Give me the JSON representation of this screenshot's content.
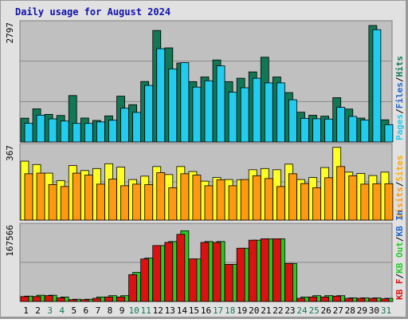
{
  "title": "Daily usage for August 2024",
  "colors": {
    "frame": "#e1e1e1",
    "plot_bg": "#c0c0c0",
    "title": "#1111aa",
    "pages": "#117755",
    "files": "#22ccee",
    "visits": "#ffff22",
    "sites": "#ff9911",
    "kb_in": "#22cc22",
    "kb_out": "#dd1111",
    "weekend": "#117755",
    "weekday": "#000000"
  },
  "chart_data": [
    {
      "type": "bar",
      "name": "panel-1",
      "ymax_label": "2797",
      "ylim": [
        0,
        2797
      ],
      "categories": [
        "1",
        "2",
        "3",
        "4",
        "5",
        "6",
        "7",
        "8",
        "9",
        "10",
        "11",
        "12",
        "13",
        "14",
        "15",
        "16",
        "17",
        "18",
        "19",
        "20",
        "21",
        "22",
        "23",
        "24",
        "25",
        "26",
        "27",
        "28",
        "29",
        "30",
        "31"
      ],
      "series": [
        {
          "name": "Pages",
          "values": [
            564,
            785,
            654,
            628,
            1100,
            567,
            510,
            618,
            1085,
            884,
            1433,
            2642,
            2230,
            1872,
            1430,
            1540,
            1943,
            1430,
            1510,
            1660,
            2008,
            1540,
            1170,
            705,
            633,
            612,
            1050,
            780,
            566,
            2760,
            525
          ]
        },
        {
          "name": "Files",
          "values": [
            442,
            636,
            547,
            496,
            440,
            440,
            475,
            515,
            800,
            701,
            1340,
            2210,
            1730,
            1880,
            1300,
            1450,
            1803,
            1179,
            1285,
            1510,
            1400,
            1400,
            1000,
            560,
            550,
            543,
            820,
            605,
            520,
            2660,
            410
          ]
        },
        {
          "name": "Hits",
          "values": [
            0,
            0,
            0,
            0,
            0,
            0,
            0,
            0,
            0,
            0,
            0,
            0,
            0,
            0,
            0,
            0,
            0,
            0,
            0,
            0,
            0,
            0,
            0,
            0,
            0,
            0,
            0,
            0,
            0,
            0,
            0
          ]
        }
      ],
      "legend": [
        "Pages",
        "/",
        "Files",
        "/",
        "Hits"
      ]
    },
    {
      "type": "bar",
      "name": "panel-2",
      "ymax_label": "367",
      "ylim": [
        0,
        367
      ],
      "categories": [
        "1",
        "2",
        "3",
        "4",
        "5",
        "6",
        "7",
        "8",
        "9",
        "10",
        "11",
        "12",
        "13",
        "14",
        "15",
        "16",
        "17",
        "18",
        "19",
        "20",
        "21",
        "22",
        "23",
        "24",
        "25",
        "26",
        "27",
        "28",
        "29",
        "30",
        "31"
      ],
      "series": [
        {
          "name": "Visits",
          "values": [
            295,
            278,
            235,
            198,
            273,
            248,
            258,
            282,
            265,
            203,
            220,
            268,
            228,
            268,
            243,
            195,
            213,
            203,
            202,
            252,
            258,
            252,
            280,
            203,
            213,
            263,
            364,
            240,
            233,
            223,
            240
          ]
        },
        {
          "name": "Sites",
          "values": [
            232,
            235,
            178,
            168,
            235,
            225,
            180,
            205,
            172,
            180,
            178,
            237,
            162,
            232,
            225,
            172,
            202,
            172,
            203,
            222,
            208,
            168,
            232,
            183,
            162,
            212,
            268,
            222,
            180,
            182,
            182
          ]
        }
      ],
      "legend": [
        "Visits",
        "/",
        "Sites"
      ]
    },
    {
      "type": "bar",
      "name": "panel-3",
      "ymax_label": "167566",
      "ylim": [
        0,
        167566
      ],
      "categories": [
        "1",
        "2",
        "3",
        "4",
        "5",
        "6",
        "7",
        "8",
        "9",
        "10",
        "11",
        "12",
        "13",
        "14",
        "15",
        "16",
        "17",
        "18",
        "19",
        "20",
        "21",
        "22",
        "23",
        "24",
        "25",
        "26",
        "27",
        "28",
        "29",
        "30",
        "31"
      ],
      "series": [
        {
          "name": "KB In",
          "values": [
            12000,
            14000,
            14000,
            10000,
            5000,
            5000,
            10000,
            13000,
            13000,
            65000,
            97000,
            125000,
            134000,
            158000,
            95000,
            134000,
            134000,
            83000,
            119000,
            137000,
            140000,
            140000,
            85000,
            10000,
            13000,
            13000,
            13000,
            8000,
            8000,
            8000,
            7000
          ]
        },
        {
          "name": "KB Out",
          "values": [
            11000,
            11000,
            13000,
            8000,
            4000,
            4000,
            7000,
            10000,
            10000,
            60000,
            95000,
            125000,
            132000,
            150000,
            95000,
            132000,
            132000,
            83000,
            119000,
            137000,
            140000,
            140000,
            85000,
            7000,
            10000,
            10000,
            12000,
            7000,
            7000,
            7000,
            6000
          ]
        },
        {
          "name": "KB F",
          "values": [
            0,
            0,
            0,
            0,
            0,
            0,
            0,
            0,
            0,
            0,
            0,
            0,
            0,
            0,
            0,
            0,
            0,
            0,
            0,
            0,
            0,
            0,
            0,
            0,
            0,
            0,
            0,
            0,
            0,
            0,
            0
          ]
        }
      ],
      "legend": [
        "KB F",
        "/",
        "KB Out",
        "/",
        "KB In"
      ]
    }
  ],
  "weekend_days": [
    "3",
    "4",
    "10",
    "11",
    "17",
    "18",
    "24",
    "25",
    "31"
  ]
}
